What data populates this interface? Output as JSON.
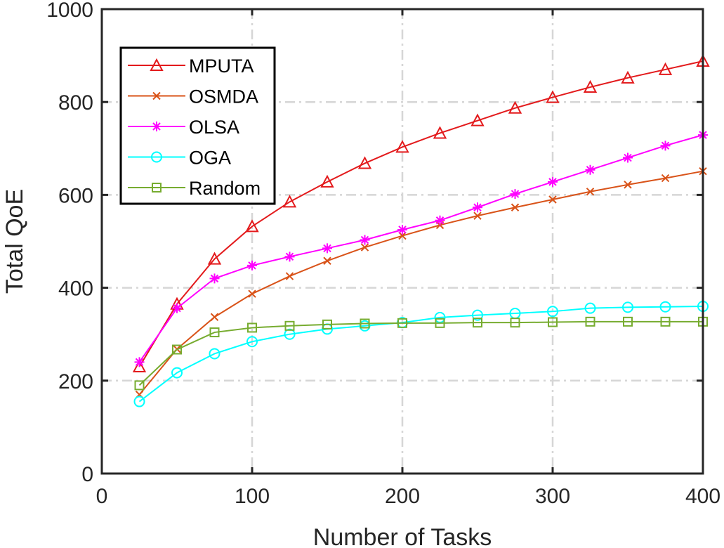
{
  "chart_data": {
    "type": "line",
    "title": "",
    "xlabel": "Number of Tasks",
    "ylabel": "Total QoE",
    "xlim": [
      0,
      400
    ],
    "ylim": [
      0,
      1000
    ],
    "xticks": [
      0,
      100,
      200,
      300,
      400
    ],
    "yticks": [
      0,
      200,
      400,
      600,
      800,
      1000
    ],
    "grid": true,
    "legend_position": "top-left",
    "x": [
      25,
      50,
      75,
      100,
      125,
      150,
      175,
      200,
      225,
      250,
      275,
      300,
      325,
      350,
      375,
      400
    ],
    "series": [
      {
        "name": "MPUTA",
        "color": "#e31a1c",
        "marker": "triangle",
        "values": [
          230,
          365,
          462,
          532,
          585,
          628,
          668,
          703,
          733,
          760,
          787,
          810,
          832,
          852,
          870,
          888
        ]
      },
      {
        "name": "OSMDA",
        "color": "#d95319",
        "marker": "x",
        "values": [
          170,
          268,
          337,
          387,
          425,
          458,
          487,
          512,
          535,
          555,
          573,
          590,
          607,
          622,
          636,
          651
        ]
      },
      {
        "name": "OLSA",
        "color": "#ff00ff",
        "marker": "star",
        "values": [
          240,
          356,
          420,
          448,
          467,
          485,
          503,
          525,
          545,
          573,
          602,
          628,
          654,
          680,
          706,
          729
        ]
      },
      {
        "name": "OGA",
        "color": "#00ffff",
        "marker": "circle",
        "values": [
          155,
          217,
          258,
          284,
          300,
          311,
          318,
          325,
          336,
          341,
          345,
          349,
          356,
          358,
          359,
          360
        ]
      },
      {
        "name": "Random",
        "color": "#77ac30",
        "marker": "square",
        "values": [
          190,
          267,
          304,
          314,
          318,
          321,
          323,
          324,
          324,
          325,
          325,
          326,
          327,
          327,
          327,
          327
        ]
      }
    ]
  }
}
